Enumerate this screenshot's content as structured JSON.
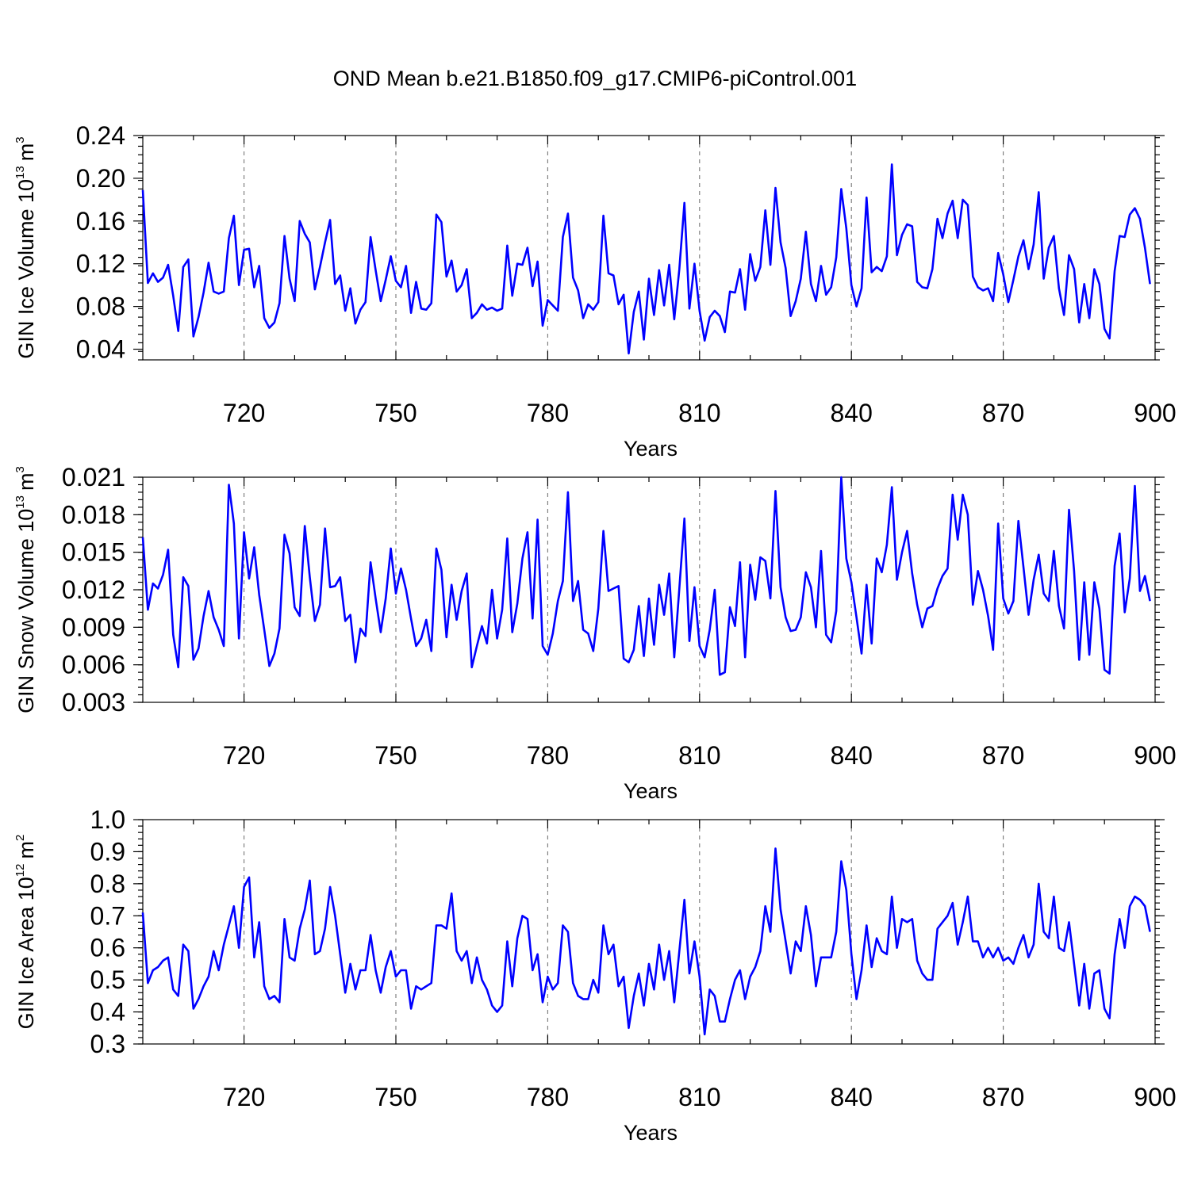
{
  "page_title": "OND Mean b.e21.B1850.f09_g17.CMIP6-piControl.001",
  "colors": {
    "line": "#0000ff",
    "axis": "#000000",
    "grid": "#777777"
  },
  "chart_data": [
    {
      "type": "line",
      "name": "ice-volume",
      "title": "OND Mean b.e21.B1850.f09_g17.CMIP6-piControl.001",
      "ylabel_text": "GIN Ice Volume 10",
      "ylabel_exp": "13",
      "ylabel_unit": "m",
      "ylabel_unit_exp": "3",
      "xlabel": "Years",
      "xlim": [
        700,
        900
      ],
      "ylim": [
        0.03,
        0.24
      ],
      "x_ticks": [
        720,
        750,
        780,
        810,
        840,
        870,
        900
      ],
      "y_ticks": [
        0.04,
        0.08,
        0.12,
        0.16,
        0.2,
        0.24
      ],
      "y_tick_labels": [
        "0.04",
        "0.08",
        "0.12",
        "0.16",
        "0.20",
        "0.24"
      ],
      "x_start": 700,
      "values": [
        0.189,
        0.102,
        0.111,
        0.103,
        0.107,
        0.119,
        0.09,
        0.057,
        0.117,
        0.124,
        0.052,
        0.07,
        0.093,
        0.121,
        0.094,
        0.092,
        0.094,
        0.144,
        0.165,
        0.1,
        0.133,
        0.134,
        0.098,
        0.118,
        0.069,
        0.06,
        0.065,
        0.083,
        0.146,
        0.106,
        0.085,
        0.16,
        0.148,
        0.14,
        0.096,
        0.117,
        0.14,
        0.161,
        0.101,
        0.109,
        0.076,
        0.097,
        0.064,
        0.077,
        0.084,
        0.145,
        0.114,
        0.085,
        0.105,
        0.127,
        0.104,
        0.098,
        0.118,
        0.074,
        0.103,
        0.078,
        0.077,
        0.083,
        0.166,
        0.159,
        0.108,
        0.123,
        0.094,
        0.1,
        0.115,
        0.069,
        0.074,
        0.082,
        0.077,
        0.079,
        0.076,
        0.078,
        0.137,
        0.09,
        0.12,
        0.119,
        0.135,
        0.099,
        0.122,
        0.062,
        0.086,
        0.081,
        0.076,
        0.145,
        0.167,
        0.107,
        0.095,
        0.069,
        0.082,
        0.077,
        0.084,
        0.165,
        0.111,
        0.109,
        0.082,
        0.091,
        0.036,
        0.075,
        0.094,
        0.049,
        0.106,
        0.072,
        0.114,
        0.081,
        0.119,
        0.068,
        0.115,
        0.177,
        0.078,
        0.12,
        0.076,
        0.048,
        0.07,
        0.076,
        0.071,
        0.056,
        0.094,
        0.093,
        0.115,
        0.077,
        0.129,
        0.104,
        0.117,
        0.17,
        0.119,
        0.191,
        0.14,
        0.116,
        0.071,
        0.085,
        0.106,
        0.15,
        0.101,
        0.085,
        0.118,
        0.091,
        0.098,
        0.126,
        0.19,
        0.153,
        0.1,
        0.08,
        0.097,
        0.182,
        0.112,
        0.117,
        0.113,
        0.127,
        0.213,
        0.128,
        0.147,
        0.157,
        0.155,
        0.103,
        0.098,
        0.097,
        0.115,
        0.162,
        0.144,
        0.167,
        0.179,
        0.144,
        0.18,
        0.175,
        0.108,
        0.098,
        0.095,
        0.097,
        0.085,
        0.13,
        0.11,
        0.084,
        0.105,
        0.127,
        0.142,
        0.115,
        0.138,
        0.187,
        0.106,
        0.135,
        0.146,
        0.097,
        0.072,
        0.128,
        0.115,
        0.065,
        0.101,
        0.069,
        0.115,
        0.101,
        0.059,
        0.05,
        0.113,
        0.146,
        0.145,
        0.166,
        0.172,
        0.162,
        0.135,
        0.101
      ]
    },
    {
      "type": "line",
      "name": "snow-volume",
      "ylabel_text": "GIN Snow Volume 10",
      "ylabel_exp": "13",
      "ylabel_unit": "m",
      "ylabel_unit_exp": "3",
      "xlabel": "Years",
      "xlim": [
        700,
        900
      ],
      "ylim": [
        0.003,
        0.021
      ],
      "x_ticks": [
        720,
        750,
        780,
        810,
        840,
        870,
        900
      ],
      "y_ticks": [
        0.003,
        0.006,
        0.009,
        0.012,
        0.015,
        0.018,
        0.021
      ],
      "y_tick_labels": [
        "0.003",
        "0.006",
        "0.009",
        "0.012",
        "0.015",
        "0.018",
        "0.021"
      ],
      "x_start": 700,
      "values": [
        0.0162,
        0.0104,
        0.0125,
        0.0121,
        0.0132,
        0.0152,
        0.0084,
        0.0058,
        0.013,
        0.0123,
        0.0064,
        0.0073,
        0.0099,
        0.0119,
        0.0098,
        0.0088,
        0.0075,
        0.0204,
        0.0173,
        0.0081,
        0.0166,
        0.0129,
        0.0154,
        0.0116,
        0.0088,
        0.0059,
        0.0069,
        0.0089,
        0.0164,
        0.0149,
        0.0106,
        0.0099,
        0.0171,
        0.013,
        0.0095,
        0.0108,
        0.0169,
        0.0122,
        0.0123,
        0.013,
        0.0095,
        0.01,
        0.0062,
        0.0089,
        0.0083,
        0.0142,
        0.0113,
        0.0086,
        0.0113,
        0.0153,
        0.0117,
        0.0137,
        0.012,
        0.0097,
        0.0075,
        0.0081,
        0.0096,
        0.0071,
        0.0153,
        0.0136,
        0.0082,
        0.0124,
        0.0096,
        0.0119,
        0.0133,
        0.0058,
        0.0075,
        0.0091,
        0.0077,
        0.012,
        0.0081,
        0.0104,
        0.0161,
        0.0086,
        0.0109,
        0.0145,
        0.0166,
        0.0097,
        0.0176,
        0.0075,
        0.0068,
        0.0085,
        0.0111,
        0.0127,
        0.0198,
        0.0111,
        0.0127,
        0.0088,
        0.0085,
        0.0071,
        0.0105,
        0.0167,
        0.0119,
        0.0121,
        0.0123,
        0.0065,
        0.0062,
        0.0072,
        0.0107,
        0.0067,
        0.0113,
        0.0076,
        0.0124,
        0.01,
        0.0133,
        0.0066,
        0.0121,
        0.0177,
        0.0079,
        0.0122,
        0.0075,
        0.0066,
        0.0088,
        0.012,
        0.0052,
        0.0054,
        0.0106,
        0.0091,
        0.0142,
        0.0066,
        0.014,
        0.0112,
        0.0146,
        0.0143,
        0.0113,
        0.0199,
        0.0122,
        0.0098,
        0.0087,
        0.0088,
        0.0098,
        0.0134,
        0.0122,
        0.009,
        0.0151,
        0.0084,
        0.0078,
        0.0103,
        0.021,
        0.0145,
        0.0126,
        0.0098,
        0.0069,
        0.0124,
        0.0077,
        0.0145,
        0.0134,
        0.0156,
        0.0202,
        0.0128,
        0.015,
        0.0167,
        0.0133,
        0.0108,
        0.009,
        0.0105,
        0.0107,
        0.0121,
        0.0131,
        0.0137,
        0.0196,
        0.016,
        0.0196,
        0.018,
        0.0108,
        0.0135,
        0.012,
        0.0099,
        0.0072,
        0.0173,
        0.0113,
        0.0101,
        0.0111,
        0.0175,
        0.0138,
        0.01,
        0.0128,
        0.0148,
        0.0117,
        0.0111,
        0.0151,
        0.0107,
        0.0089,
        0.0184,
        0.0135,
        0.0064,
        0.0126,
        0.0068,
        0.0126,
        0.0105,
        0.0056,
        0.0053,
        0.0139,
        0.0165,
        0.0102,
        0.0129,
        0.0203,
        0.0119,
        0.0131,
        0.0111
      ]
    },
    {
      "type": "line",
      "name": "ice-area",
      "ylabel_text": "GIN Ice Area 10",
      "ylabel_exp": "12",
      "ylabel_unit": "m",
      "ylabel_unit_exp": "2",
      "xlabel": "Years",
      "xlim": [
        700,
        900
      ],
      "ylim": [
        0.3,
        1.0
      ],
      "x_ticks": [
        720,
        750,
        780,
        810,
        840,
        870,
        900
      ],
      "y_ticks": [
        0.3,
        0.4,
        0.5,
        0.6,
        0.7,
        0.8,
        0.9,
        1.0
      ],
      "y_tick_labels": [
        "0.3",
        "0.4",
        "0.5",
        "0.6",
        "0.7",
        "0.8",
        "0.9",
        "1.0"
      ],
      "x_start": 700,
      "values": [
        0.71,
        0.49,
        0.53,
        0.54,
        0.56,
        0.57,
        0.47,
        0.45,
        0.61,
        0.59,
        0.41,
        0.44,
        0.48,
        0.51,
        0.59,
        0.53,
        0.61,
        0.67,
        0.73,
        0.6,
        0.79,
        0.82,
        0.57,
        0.68,
        0.48,
        0.44,
        0.45,
        0.43,
        0.69,
        0.57,
        0.56,
        0.66,
        0.72,
        0.81,
        0.58,
        0.59,
        0.66,
        0.79,
        0.7,
        0.58,
        0.46,
        0.55,
        0.47,
        0.53,
        0.53,
        0.64,
        0.53,
        0.46,
        0.54,
        0.59,
        0.51,
        0.53,
        0.53,
        0.41,
        0.48,
        0.47,
        0.48,
        0.49,
        0.67,
        0.67,
        0.66,
        0.77,
        0.59,
        0.56,
        0.59,
        0.49,
        0.57,
        0.5,
        0.47,
        0.42,
        0.4,
        0.42,
        0.62,
        0.48,
        0.63,
        0.7,
        0.69,
        0.53,
        0.58,
        0.43,
        0.51,
        0.47,
        0.49,
        0.67,
        0.65,
        0.49,
        0.45,
        0.44,
        0.44,
        0.5,
        0.46,
        0.67,
        0.58,
        0.61,
        0.48,
        0.51,
        0.35,
        0.45,
        0.52,
        0.42,
        0.55,
        0.47,
        0.61,
        0.5,
        0.59,
        0.43,
        0.59,
        0.75,
        0.52,
        0.62,
        0.51,
        0.33,
        0.47,
        0.45,
        0.37,
        0.37,
        0.44,
        0.5,
        0.53,
        0.44,
        0.51,
        0.54,
        0.59,
        0.73,
        0.65,
        0.91,
        0.72,
        0.62,
        0.52,
        0.62,
        0.59,
        0.73,
        0.64,
        0.48,
        0.57,
        0.57,
        0.57,
        0.65,
        0.87,
        0.78,
        0.58,
        0.44,
        0.53,
        0.67,
        0.54,
        0.63,
        0.59,
        0.58,
        0.76,
        0.6,
        0.69,
        0.68,
        0.69,
        0.56,
        0.52,
        0.5,
        0.5,
        0.66,
        0.68,
        0.7,
        0.74,
        0.61,
        0.68,
        0.76,
        0.62,
        0.62,
        0.57,
        0.6,
        0.57,
        0.6,
        0.56,
        0.57,
        0.55,
        0.6,
        0.64,
        0.57,
        0.61,
        0.8,
        0.65,
        0.63,
        0.76,
        0.6,
        0.59,
        0.68,
        0.55,
        0.42,
        0.55,
        0.41,
        0.52,
        0.53,
        0.41,
        0.38,
        0.58,
        0.69,
        0.6,
        0.73,
        0.76,
        0.75,
        0.73,
        0.65
      ]
    }
  ]
}
